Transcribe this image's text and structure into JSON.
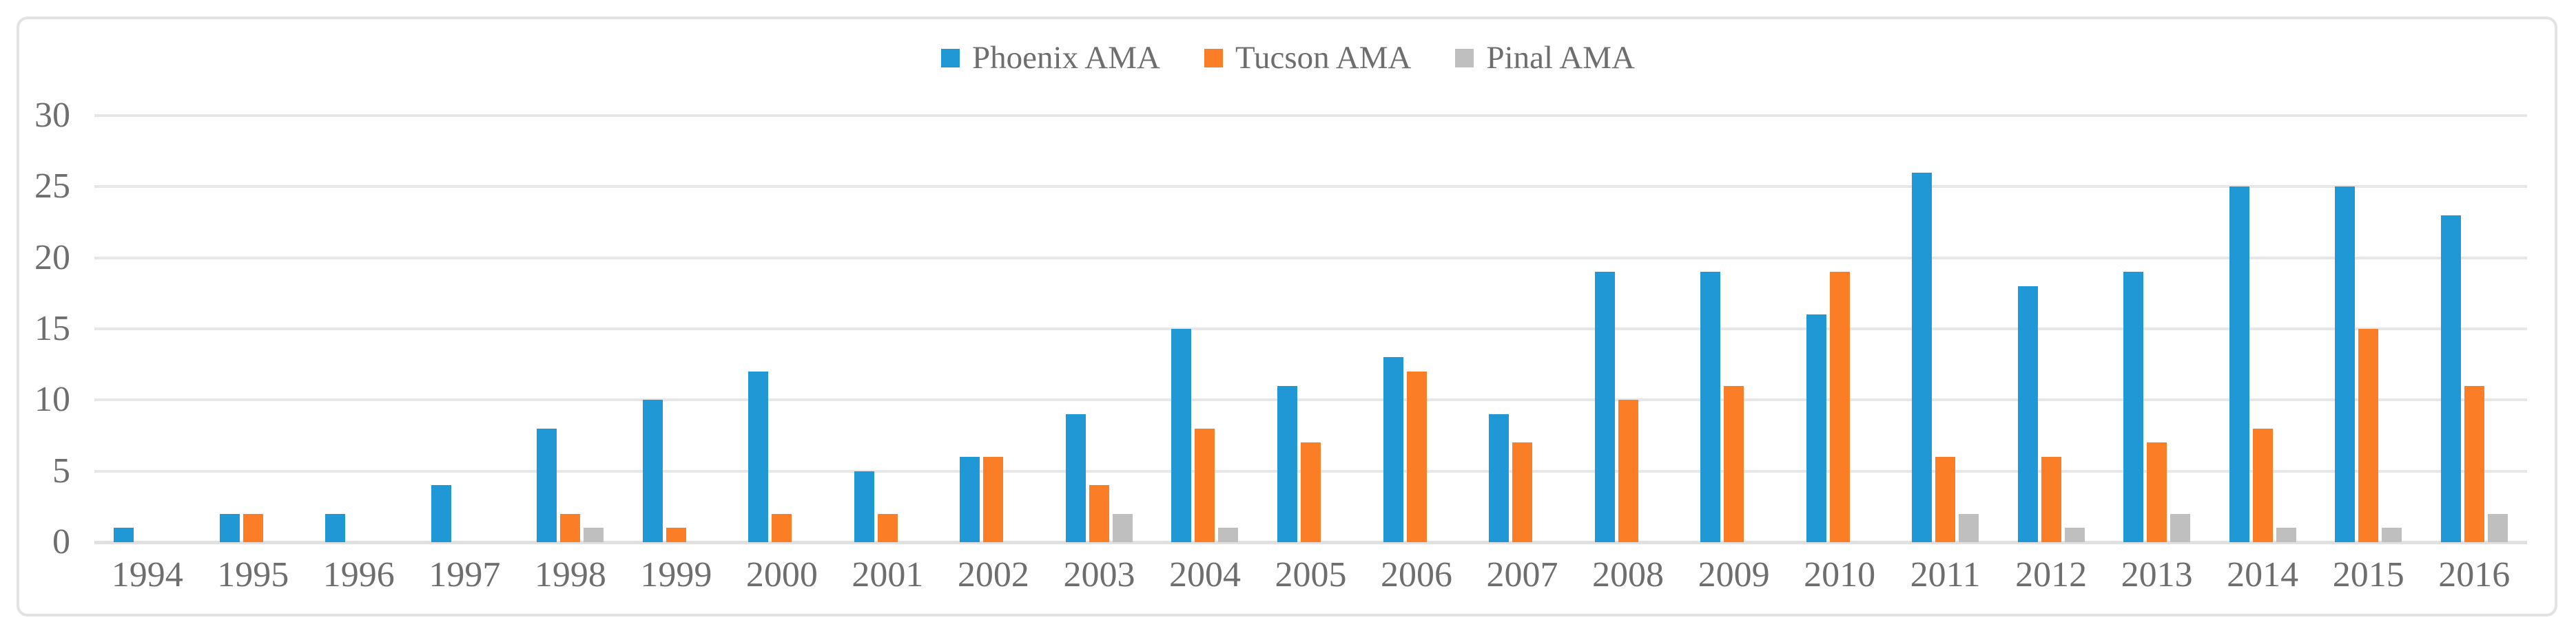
{
  "figure": {
    "background_color": "#FFFFFF",
    "border_color": "#E2E2E2",
    "gridline_color": "#E7E7E7",
    "axis_line_color": "#E0E0E0",
    "text_color": "#6E6E6E"
  },
  "chart_data": {
    "type": "bar",
    "title": "",
    "xlabel": "",
    "ylabel": "",
    "categories": [
      "1994",
      "1995",
      "1996",
      "1997",
      "1998",
      "1999",
      "2000",
      "2001",
      "2002",
      "2003",
      "2004",
      "2005",
      "2006",
      "2007",
      "2008",
      "2009",
      "2010",
      "2011",
      "2012",
      "2013",
      "2014",
      "2015",
      "2016"
    ],
    "series": [
      {
        "name": "Phoenix AMA",
        "color": "#2098D5",
        "values": [
          1,
          2,
          2,
          4,
          8,
          10,
          12,
          5,
          6,
          9,
          15,
          11,
          13,
          9,
          19,
          19,
          16,
          26,
          18,
          19,
          25,
          25,
          23
        ]
      },
      {
        "name": "Tucson AMA",
        "color": "#FB7D26",
        "values": [
          0,
          2,
          0,
          0,
          2,
          1,
          2,
          2,
          6,
          4,
          8,
          7,
          12,
          7,
          10,
          11,
          19,
          6,
          6,
          7,
          8,
          15,
          11
        ]
      },
      {
        "name": "Pinal AMA",
        "color": "#BFBFBF",
        "values": [
          0,
          0,
          0,
          0,
          1,
          0,
          0,
          0,
          0,
          2,
          1,
          0,
          0,
          0,
          0,
          0,
          0,
          2,
          1,
          2,
          1,
          1,
          2
        ]
      }
    ],
    "ylim": [
      0,
      30
    ],
    "yticks": [
      0,
      5,
      10,
      15,
      20,
      25,
      30
    ],
    "grid": "horizontal",
    "legend_position": "top-center"
  }
}
